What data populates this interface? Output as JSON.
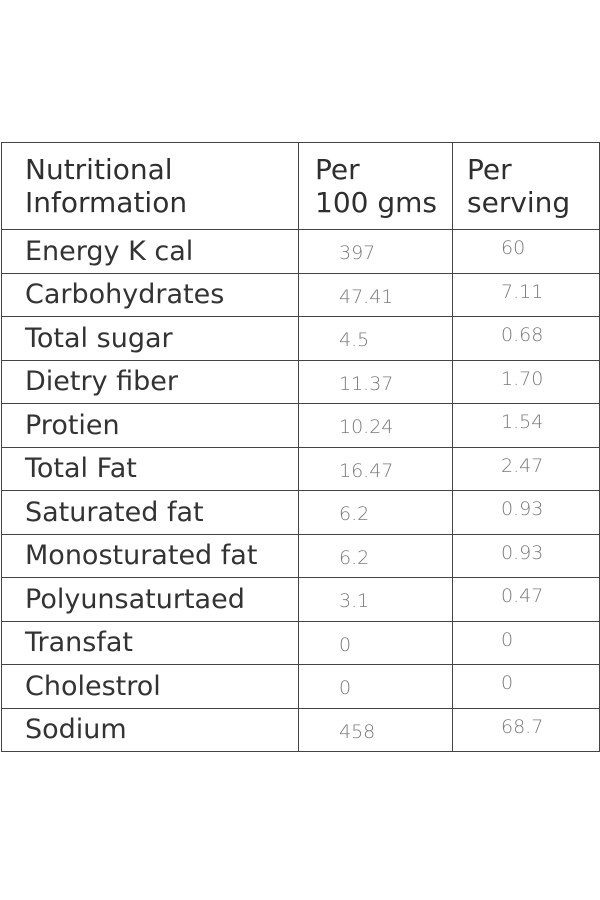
{
  "table": {
    "headers": {
      "nutrient": [
        "Nutritional",
        "Information"
      ],
      "per_100": [
        "Per",
        "100 gms"
      ],
      "per_serving": [
        "Per",
        "serving"
      ]
    },
    "rows": [
      {
        "name": "Energy K cal",
        "per_100": "397",
        "per_serving": "60"
      },
      {
        "name": "Carbohydrates",
        "per_100": "47.41",
        "per_serving": "7.11"
      },
      {
        "name": "Total sugar",
        "per_100": "4.5",
        "per_serving": "0.68"
      },
      {
        "name": "Dietry fiber",
        "per_100": "11.37",
        "per_serving": "1.70"
      },
      {
        "name": "Protien",
        "per_100": "10.24",
        "per_serving": "1.54"
      },
      {
        "name": "Total Fat",
        "per_100": "16.47",
        "per_serving": "2.47"
      },
      {
        "name": "Saturated fat",
        "per_100": "6.2",
        "per_serving": "0.93"
      },
      {
        "name": "Monosturated fat",
        "per_100": "6.2",
        "per_serving": "0.93"
      },
      {
        "name": "Polyunsaturtaed",
        "per_100": "3.1",
        "per_serving": "0.47"
      },
      {
        "name": "Transfat",
        "per_100": "0",
        "per_serving": "0"
      },
      {
        "name": "Cholestrol",
        "per_100": "0",
        "per_serving": "0"
      },
      {
        "name": "Sodium",
        "per_100": "458",
        "per_serving": "68.7"
      }
    ]
  }
}
